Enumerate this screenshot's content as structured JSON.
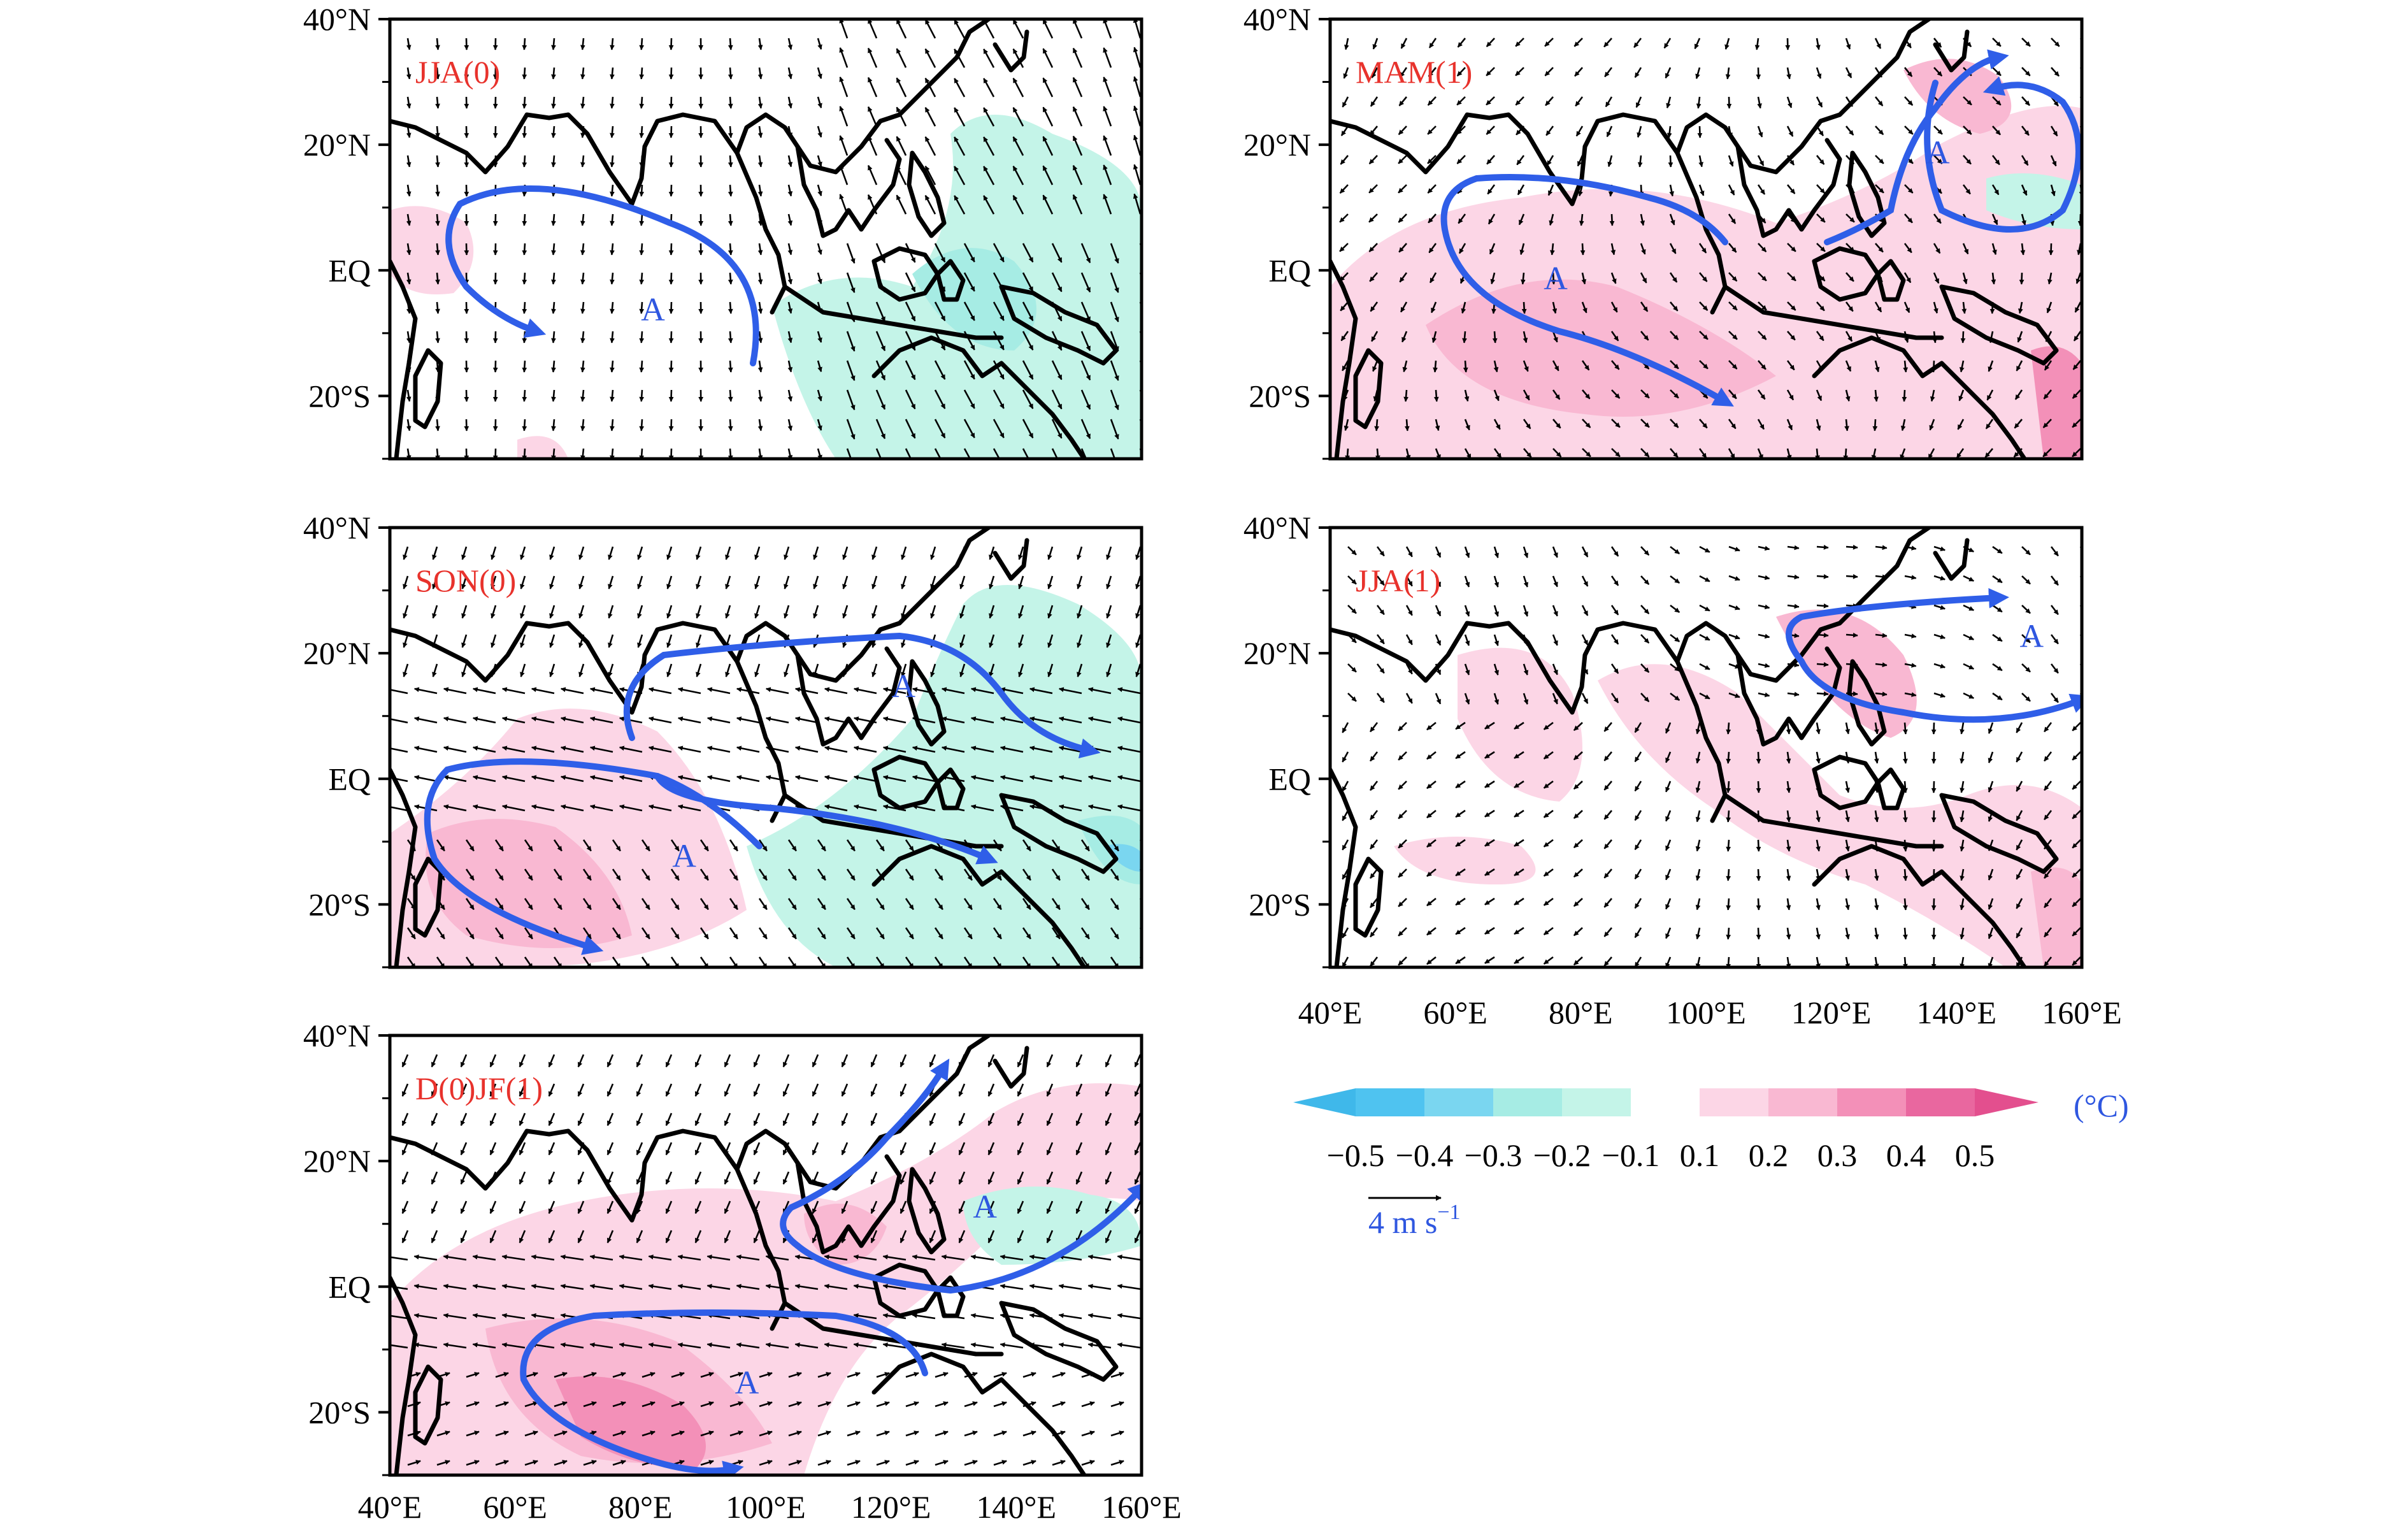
{
  "figure": {
    "lat_labels": [
      "40°N",
      "20°N",
      "EQ",
      "20°S"
    ],
    "lon_labels": [
      "40°E",
      "60°E",
      "80°E",
      "100°E",
      "120°E",
      "140°E",
      "160°E"
    ],
    "map_extent": {
      "lon_range": [
        40,
        160
      ],
      "lat_range": [
        -30,
        40
      ]
    },
    "anticyclone_label": "A",
    "panels": [
      {
        "id": "jja0",
        "title": "JJA(0)",
        "anticyclones": [
          {
            "lon": 82,
            "lat": -8
          }
        ]
      },
      {
        "id": "mam1",
        "title": "MAM(1)",
        "anticyclones": [
          {
            "lon": 137,
            "lat": 17
          },
          {
            "lon": 76,
            "lat": -3
          }
        ]
      },
      {
        "id": "son0",
        "title": "SON(0)",
        "anticyclones": [
          {
            "lon": 122,
            "lat": 13
          },
          {
            "lon": 87,
            "lat": -14
          }
        ]
      },
      {
        "id": "jja1",
        "title": "JJA(1)",
        "anticyclones": [
          {
            "lon": 152,
            "lat": 21
          }
        ]
      },
      {
        "id": "djf1",
        "title": "D(0)JF(1)",
        "anticyclones": [
          {
            "lon": 135,
            "lat": 11
          },
          {
            "lon": 97,
            "lat": -17
          }
        ]
      }
    ]
  },
  "colorbar": {
    "unit": "(°C)",
    "negative_labels": [
      "−0.5",
      "−0.4",
      "−0.3",
      "−0.2",
      "−0.1"
    ],
    "positive_labels": [
      "0.1",
      "0.2",
      "0.3",
      "0.4",
      "0.5"
    ],
    "negative_colors": [
      "#4fc3f0",
      "#7ad6f0",
      "#a6ece4",
      "#c4f4e8"
    ],
    "positive_colors": [
      "#fcd6e6",
      "#f9b8d2",
      "#f390b8",
      "#e9679f"
    ],
    "arrow_left_color": "#3fb8ea",
    "arrow_right_color": "#e34f8e"
  },
  "vector_key": {
    "label_value": "4 m s",
    "label_exponent": "−1"
  },
  "colors": {
    "season_title": "#e8322c",
    "flow_arrow": "#2f5ee8",
    "anticyclone_label": "#2f57e0"
  }
}
